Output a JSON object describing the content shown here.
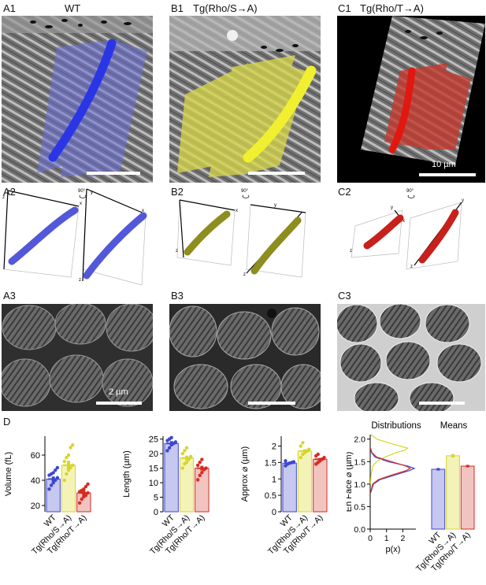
{
  "panels": {
    "a1": "A1",
    "a1_title": "WT",
    "b1": "B1",
    "b1_title": "Tg(Rho/S→A)",
    "c1": "C1",
    "c1_title": "Tg(Rho/T→A)",
    "a2": "A2",
    "b2": "B2",
    "c2": "C2",
    "a3": "A3",
    "b3": "B3",
    "c3": "C3",
    "d": "D"
  },
  "scale_labels": {
    "c1": "10 µm",
    "a3": "2 µm"
  },
  "rotation_label": "90°",
  "axis_letters": {
    "x": "x",
    "y": "y",
    "z": "z"
  },
  "colors": {
    "wt": "#3c46d2",
    "sa": "#d6d62a",
    "ta": "#d82a20"
  },
  "chart_data": [
    {
      "type": "bar",
      "categories": [
        "WT",
        "Tg(Rho/S→A)",
        "Tg(Rho/T→A)"
      ],
      "values": [
        41,
        52,
        30
      ],
      "errors": [
        2,
        3.5,
        2
      ],
      "points": [
        [
          33,
          36,
          38,
          40,
          42,
          44,
          45,
          46,
          48,
          50
        ],
        [
          40,
          45,
          48,
          50,
          52,
          55,
          58,
          60,
          66,
          68
        ],
        [
          22,
          25,
          27,
          28,
          30,
          31,
          32,
          33,
          35,
          37
        ]
      ],
      "ylabel": "Volume (fL)",
      "ylim": [
        15,
        75
      ],
      "yticks": [
        20,
        40,
        60
      ]
    },
    {
      "type": "bar",
      "categories": [
        "WT",
        "Tg(Rho/S→A)",
        "Tg(Rho/T→A)"
      ],
      "values": [
        23.5,
        18.5,
        15
      ],
      "errors": [
        0.8,
        0.8,
        0.8
      ],
      "points": [
        [
          21,
          22,
          23,
          23.5,
          24,
          24.5,
          25,
          25.5
        ],
        [
          15,
          16.5,
          17,
          18,
          19,
          20,
          21,
          22
        ],
        [
          11,
          12.5,
          13.5,
          14.5,
          15,
          16,
          17,
          18
        ]
      ],
      "ylabel": "Length (µm)",
      "ylim": [
        0,
        26
      ],
      "yticks": [
        0,
        5,
        10,
        15,
        20,
        25
      ]
    },
    {
      "type": "bar",
      "categories": [
        "WT",
        "Tg(Rho/S→A)",
        "Tg(Rho/T→A)"
      ],
      "values": [
        1.48,
        1.85,
        1.6
      ],
      "errors": [
        0.04,
        0.05,
        0.04
      ],
      "points": [
        [
          1.4,
          1.45,
          1.48,
          1.5,
          1.52,
          1.55
        ],
        [
          1.65,
          1.75,
          1.8,
          1.85,
          1.9,
          2.0,
          2.1
        ],
        [
          1.45,
          1.5,
          1.55,
          1.6,
          1.65,
          1.7,
          1.75
        ]
      ],
      "ylabel": "Approx ⌀ (µm)",
      "ylim": [
        0,
        2.3
      ],
      "yticks": [
        0,
        0.5,
        1.0,
        1.5,
        2.0
      ]
    },
    {
      "type": "line",
      "title": "Distributions",
      "xlabel": "p(x)",
      "ylabel": "En Face ⌀ (µm)",
      "xlim": [
        0,
        2.8
      ],
      "ylim": [
        0,
        2.1
      ],
      "xticks": [
        0,
        1,
        2
      ],
      "yticks": [
        0,
        0.5,
        1.0,
        1.5,
        2.0
      ],
      "series": [
        {
          "color": "#3c46d2",
          "y": [
            0.8,
            1.0,
            1.1,
            1.2,
            1.3,
            1.35,
            1.4,
            1.5,
            1.6,
            1.7,
            1.8
          ],
          "x": [
            0.02,
            0.2,
            0.6,
            1.5,
            2.4,
            2.7,
            2.3,
            1.1,
            0.3,
            0.08,
            0.02
          ]
        },
        {
          "color": "#d6d62a",
          "y": [
            1.0,
            1.2,
            1.4,
            1.5,
            1.6,
            1.7,
            1.75,
            1.8,
            1.9,
            2.0,
            2.1
          ],
          "x": [
            0.02,
            0.05,
            0.15,
            0.4,
            0.9,
            1.6,
            2.1,
            2.3,
            1.3,
            0.4,
            0.05
          ]
        },
        {
          "color": "#d82a20",
          "y": [
            0.8,
            1.0,
            1.1,
            1.2,
            1.3,
            1.35,
            1.4,
            1.5,
            1.6,
            1.7,
            1.8
          ],
          "x": [
            0.02,
            0.15,
            0.5,
            1.3,
            2.2,
            2.45,
            2.2,
            1.3,
            0.4,
            0.1,
            0.02
          ]
        }
      ]
    },
    {
      "type": "bar",
      "title": "Means",
      "categories": [
        "WT",
        "Tg(Rho/S→A)",
        "Tg(Rho/T→A)"
      ],
      "values": [
        1.33,
        1.63,
        1.4
      ],
      "errors": [
        0.01,
        0.02,
        0.01
      ],
      "ylim": [
        0,
        2.1
      ]
    }
  ]
}
